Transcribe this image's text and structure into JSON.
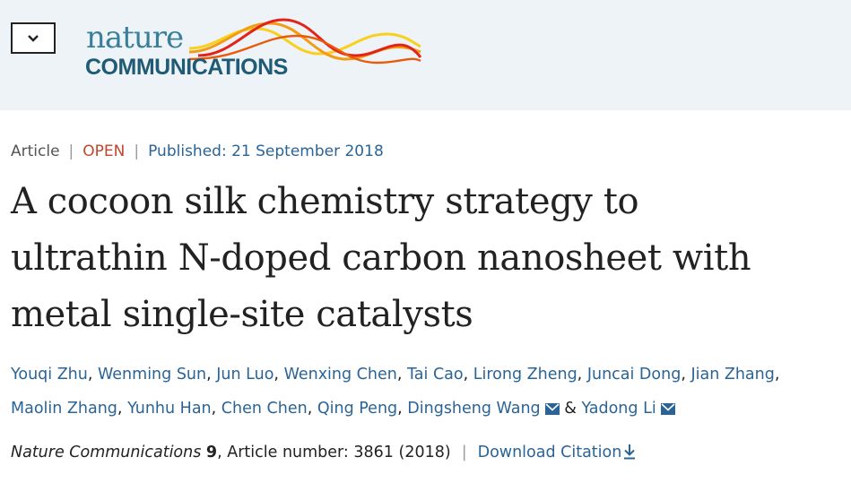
{
  "header": {
    "logo_line1": "nature",
    "logo_line2": "COMMUNICATIONS",
    "brand_colors": {
      "teal": "#38809a",
      "navy": "#205b75",
      "red": "#e2231a",
      "orange": "#f39c12",
      "yellow": "#f7d020"
    }
  },
  "article": {
    "type": "Article",
    "access": "OPEN",
    "published": "Published: 21 September 2018",
    "title_lines": [
      "A cocoon silk chemistry strategy to",
      "ultrathin N-doped carbon nanosheet with",
      "metal single-site catalysts"
    ],
    "authors": [
      "Youqi Zhu",
      "Wenming Sun",
      "Jun Luo",
      "Wenxing Chen",
      "Tai Cao",
      "Lirong Zheng",
      "Juncai Dong",
      "Jian Zhang",
      "Maolin Zhang",
      "Yunhu Han",
      "Chen Chen",
      "Qing Peng",
      "Dingsheng Wang",
      "Yadong Li"
    ],
    "and_symbol": "&",
    "journal": "Nature Communications",
    "volume": "9",
    "article_number": ", Article number: 3861 (2018)",
    "download_citation": "Download Citation"
  },
  "icons": {
    "menu": "chevron-down-icon",
    "mail": "envelope-icon",
    "download": "download-arrow-icon"
  }
}
